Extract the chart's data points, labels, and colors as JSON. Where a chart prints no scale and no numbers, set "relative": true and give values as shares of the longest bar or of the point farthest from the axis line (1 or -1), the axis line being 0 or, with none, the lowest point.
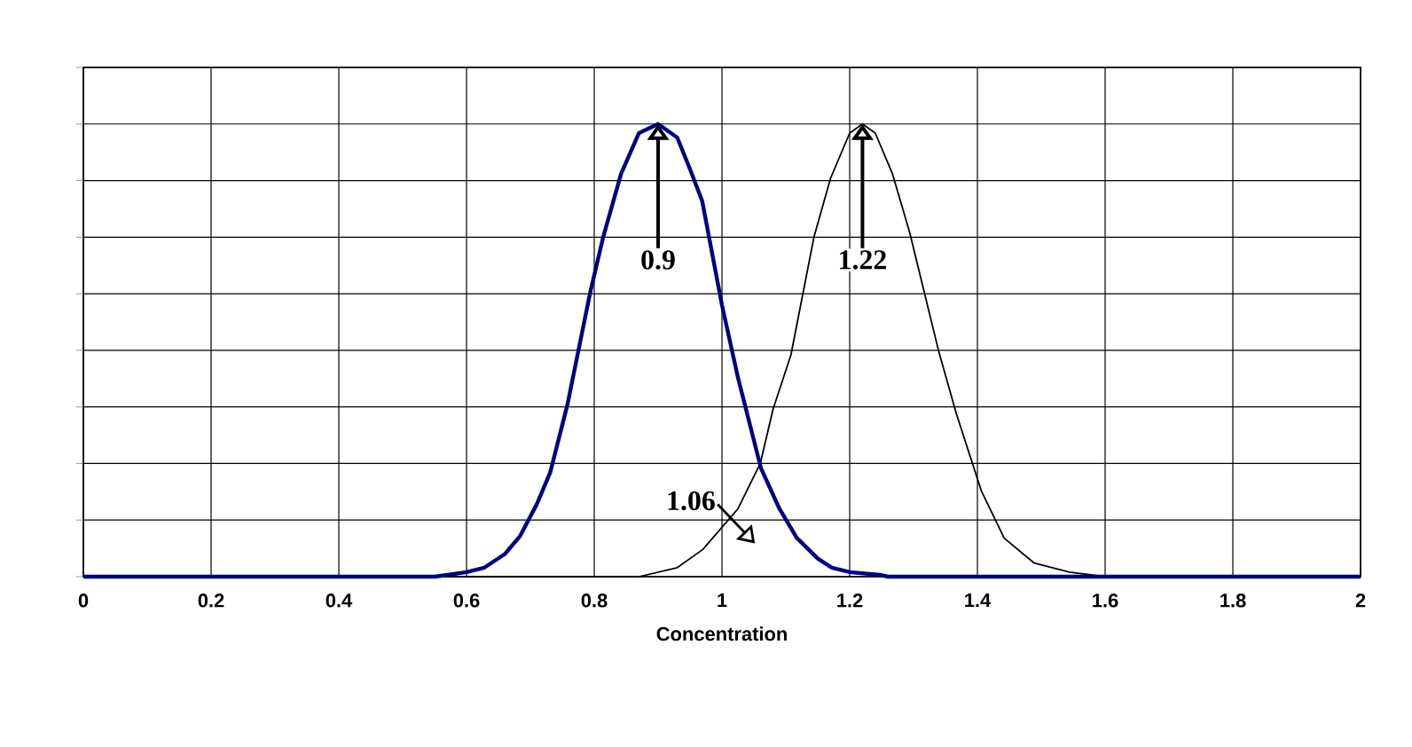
{
  "chart_data": {
    "type": "line",
    "xlabel": "Concentration",
    "relative": true,
    "grid": true,
    "marker": "none",
    "line_style": "solid",
    "xlim": [
      0,
      2
    ],
    "xticks": [
      0,
      0.2,
      0.4,
      0.6,
      0.8,
      1,
      1.2,
      1.4,
      1.6,
      1.8,
      2
    ],
    "series": [
      {
        "color": "#000000",
        "x": [
          0,
          0.87,
          0.93,
          0.97,
          1.025,
          1.06,
          1.08,
          1.108,
          1.144,
          1.17,
          1.2,
          1.22,
          1.24,
          1.267,
          1.294,
          1.339,
          1.367,
          1.406,
          1.442,
          1.489,
          1.544,
          1.6,
          2
        ],
        "values": [
          0,
          0,
          0.02,
          0.06,
          0.15,
          0.25,
          0.37,
          0.49,
          0.75,
          0.88,
          0.98,
          1,
          0.98,
          0.89,
          0.76,
          0.5,
          0.36,
          0.19,
          0.085,
          0.03,
          0.01,
          0,
          0
        ]
      },
      {
        "color": "#000080",
        "x": [
          0,
          0.55,
          0.6,
          0.628,
          0.66,
          0.684,
          0.71,
          0.731,
          0.758,
          0.794,
          0.814,
          0.842,
          0.87,
          0.9,
          0.93,
          0.95,
          0.969,
          1.0,
          1.025,
          1.061,
          1.09,
          1.117,
          1.15,
          1.172,
          1.2,
          1.247,
          1.26,
          2
        ],
        "values": [
          0,
          0,
          0.01,
          0.02,
          0.05,
          0.09,
          0.16,
          0.23,
          0.38,
          0.63,
          0.75,
          0.89,
          0.98,
          1,
          0.97,
          0.9,
          0.83,
          0.6,
          0.44,
          0.24,
          0.15,
          0.086,
          0.04,
          0.02,
          0.01,
          0.004,
          0,
          0
        ]
      }
    ],
    "annotations": [
      {
        "text": "0.9",
        "x": 0.9,
        "y": 1
      },
      {
        "text": "1.22",
        "x": 1.22,
        "y": 1
      },
      {
        "text": "1.06",
        "x": 1.06,
        "y": 0.25
      }
    ]
  }
}
